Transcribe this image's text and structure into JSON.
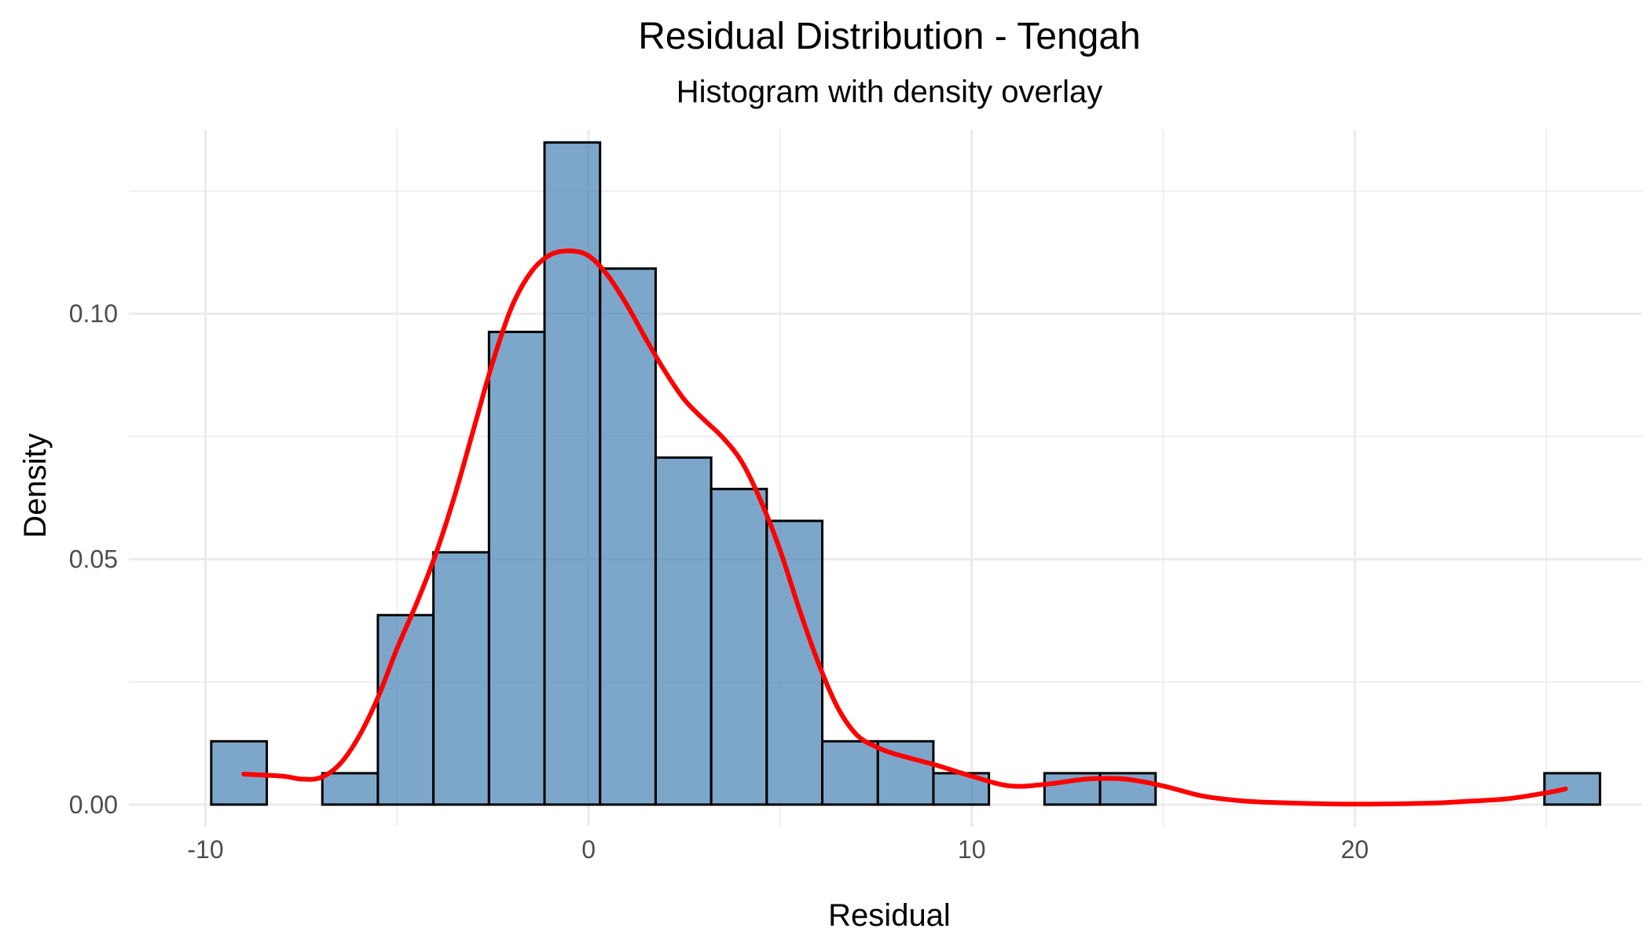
{
  "chart_data": {
    "type": "bar",
    "title": "Residual Distribution - Tengah",
    "subtitle": "Histogram with density overlay",
    "xlabel": "Residual",
    "ylabel": "Density",
    "xlim": [
      -12,
      27.5
    ],
    "ylim": [
      -0.0045,
      0.1375
    ],
    "x_ticks": [
      -10,
      0,
      10,
      20
    ],
    "x_tick_labels": [
      "-10",
      "0",
      "10",
      "20"
    ],
    "y_ticks": [
      0,
      0.05,
      0.1
    ],
    "y_tick_labels": [
      "0.00",
      "0.05",
      "0.10"
    ],
    "grid": true,
    "bin_width": 1.45,
    "bins": [
      {
        "start": -9.85,
        "end": -8.4,
        "density": 0.0129
      },
      {
        "start": -8.4,
        "end": -6.95,
        "density": 0.0
      },
      {
        "start": -6.95,
        "end": -5.5,
        "density": 0.0064
      },
      {
        "start": -5.5,
        "end": -4.05,
        "density": 0.0386
      },
      {
        "start": -4.05,
        "end": -2.6,
        "density": 0.0514
      },
      {
        "start": -2.6,
        "end": -1.15,
        "density": 0.0963
      },
      {
        "start": -1.15,
        "end": 0.3,
        "density": 0.1349
      },
      {
        "start": 0.3,
        "end": 1.75,
        "density": 0.1092
      },
      {
        "start": 1.75,
        "end": 3.2,
        "density": 0.0707
      },
      {
        "start": 3.2,
        "end": 4.65,
        "density": 0.0643
      },
      {
        "start": 4.65,
        "end": 6.1,
        "density": 0.0578
      },
      {
        "start": 6.1,
        "end": 7.55,
        "density": 0.0129
      },
      {
        "start": 7.55,
        "end": 9.0,
        "density": 0.0129
      },
      {
        "start": 9.0,
        "end": 10.45,
        "density": 0.0064
      },
      {
        "start": 10.45,
        "end": 11.9,
        "density": 0.0
      },
      {
        "start": 11.9,
        "end": 13.35,
        "density": 0.0064
      },
      {
        "start": 13.35,
        "end": 14.8,
        "density": 0.0064
      },
      {
        "start": 24.95,
        "end": 26.4,
        "density": 0.0064
      }
    ],
    "density_curve": {
      "x": [
        -9.0,
        -8.0,
        -7.5,
        -7.0,
        -6.5,
        -6.0,
        -5.5,
        -5.0,
        -4.5,
        -4.0,
        -3.5,
        -3.0,
        -2.5,
        -2.0,
        -1.5,
        -1.0,
        -0.5,
        0.0,
        0.5,
        1.0,
        1.5,
        2.0,
        2.5,
        3.0,
        3.5,
        4.0,
        4.5,
        5.0,
        5.5,
        6.0,
        6.5,
        7.0,
        7.5,
        8.0,
        9.0,
        10.0,
        11.0,
        12.0,
        13.0,
        14.0,
        15.0,
        16.0,
        17.0,
        18.0,
        20.0,
        22.0,
        23.0,
        24.0,
        25.0,
        25.5
      ],
      "y": [
        0.0062,
        0.0058,
        0.0052,
        0.0055,
        0.0082,
        0.0138,
        0.0218,
        0.0318,
        0.0408,
        0.0508,
        0.0628,
        0.0765,
        0.0902,
        0.1015,
        0.1085,
        0.112,
        0.1128,
        0.1118,
        0.1078,
        0.1018,
        0.0948,
        0.0882,
        0.0825,
        0.0785,
        0.0748,
        0.0698,
        0.0618,
        0.0518,
        0.0398,
        0.0288,
        0.0198,
        0.0142,
        0.0118,
        0.0103,
        0.0082,
        0.0058,
        0.0038,
        0.0042,
        0.0052,
        0.0052,
        0.0038,
        0.0018,
        0.0008,
        0.0004,
        0.0001,
        0.0003,
        0.0007,
        0.0012,
        0.0024,
        0.0032
      ]
    },
    "colors": {
      "bar_fill": "#4682B4",
      "bar_stroke": "#000000",
      "curve": "#FF0000",
      "grid": "#EBEBEB"
    }
  }
}
